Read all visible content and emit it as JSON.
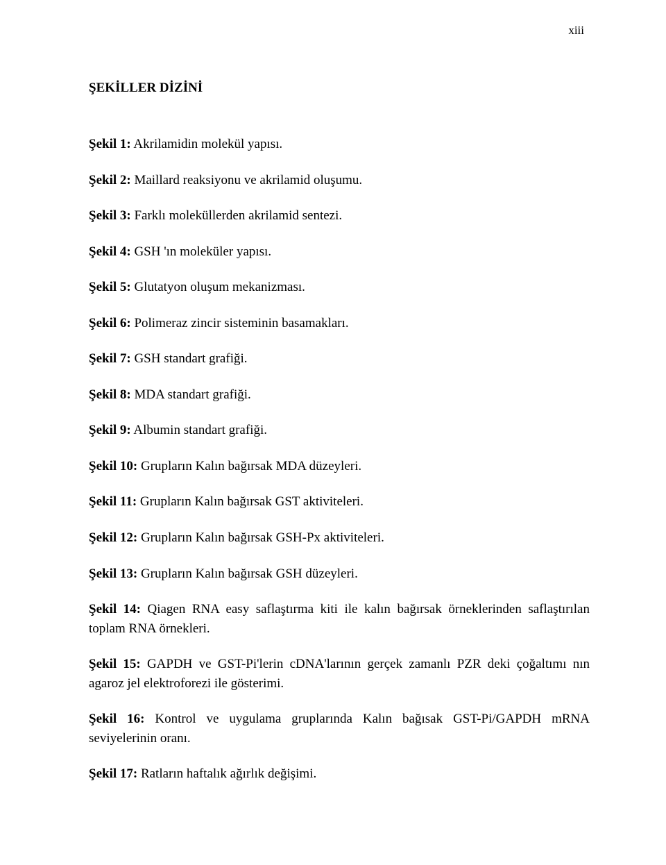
{
  "page_number": "xiii",
  "heading": "ŞEKİLLER DİZİNİ",
  "entries": [
    {
      "label": "Şekil 1:",
      "text": " Akrilamidin molekül yapısı."
    },
    {
      "label": "Şekil 2:",
      "text": " Maillard reaksiyonu ve akrilamid oluşumu."
    },
    {
      "label": "Şekil 3:",
      "text": " Farklı moleküllerden akrilamid sentezi."
    },
    {
      "label": "Şekil 4:",
      "text": " GSH 'ın moleküler yapısı."
    },
    {
      "label": "Şekil 5:",
      "text": " Glutatyon oluşum mekanizması."
    },
    {
      "label": "Şekil 6:",
      "text": " Polimeraz zincir sisteminin basamakları."
    },
    {
      "label": "Şekil 7:",
      "text": " GSH standart grafiği."
    },
    {
      "label": "Şekil 8:",
      "text": " MDA standart grafiği."
    },
    {
      "label": "Şekil 9:",
      "text": " Albumin standart grafiği."
    },
    {
      "label": "Şekil 10:",
      "text": " Grupların Kalın bağırsak MDA düzeyleri."
    },
    {
      "label": "Şekil 11:",
      "text": " Grupların Kalın bağırsak GST aktiviteleri."
    },
    {
      "label": "Şekil 12:",
      "text": " Grupların Kalın bağırsak GSH-Px aktiviteleri."
    },
    {
      "label": "Şekil 13:",
      "text": " Grupların Kalın bağırsak GSH düzeyleri."
    },
    {
      "label": "Şekil 14:",
      "text": " Qiagen RNA easy saflaştırma kiti ile kalın bağırsak örneklerinden saflaştırılan toplam RNA örnekleri."
    },
    {
      "label": "Şekil 15:",
      "text": " GAPDH ve GST-Pi'lerin cDNA'larının gerçek zamanlı PZR deki çoğaltımı nın agaroz jel elektroforezi ile gösterimi."
    },
    {
      "label": "Şekil 16:",
      "text": " Kontrol ve uygulama gruplarında Kalın bağısak GST-Pi/GAPDH mRNA seviyelerinin oranı."
    },
    {
      "label": "Şekil 17:",
      "text": " Ratların haftalık ağırlık değişimi."
    }
  ]
}
